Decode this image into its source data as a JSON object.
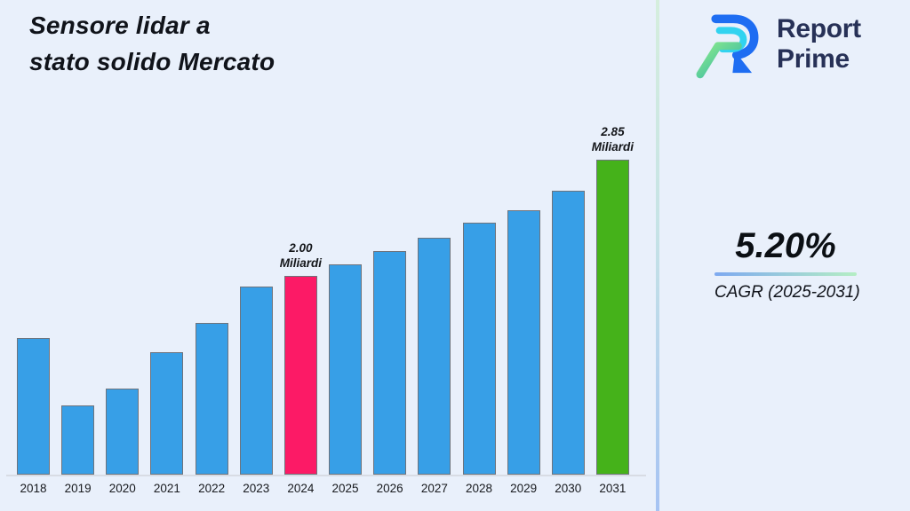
{
  "page": {
    "background": "#E9F0FB"
  },
  "title": {
    "line1": "Sensore lidar a",
    "line2": "stato solido Mercato"
  },
  "logo": {
    "brand_line1": "Report",
    "brand_line2": "Prime",
    "text_color": "#273157",
    "mark_colors": {
      "blue": "#1E6DF2",
      "cyan": "#31D3F0",
      "green_light": "#8BEA8B",
      "teal": "#2FB4A9"
    }
  },
  "cagr": {
    "value": "5.20%",
    "label": "CAGR (2025-2031)",
    "underline_gradient_left": "#7DA9F0",
    "underline_gradient_right": "#B5EEC4"
  },
  "divider": {
    "gradient_top": "#D5EEDD",
    "gradient_bottom": "#A6C3F3"
  },
  "chart_data": {
    "type": "bar",
    "title": "Sensore lidar a stato solido Mercato",
    "unit": "Miliardi",
    "categories": [
      "2018",
      "2019",
      "2020",
      "2021",
      "2022",
      "2023",
      "2024",
      "2025",
      "2026",
      "2027",
      "2028",
      "2029",
      "2030",
      "2031"
    ],
    "values": [
      1.54,
      1.05,
      1.17,
      1.44,
      1.65,
      1.92,
      2.0,
      2.08,
      2.18,
      2.28,
      2.39,
      2.48,
      2.62,
      2.85
    ],
    "bar_colors": [
      "#379FE7",
      "#379FE7",
      "#379FE7",
      "#379FE7",
      "#379FE7",
      "#379FE7",
      "#FC1A66",
      "#379FE7",
      "#379FE7",
      "#379FE7",
      "#379FE7",
      "#379FE7",
      "#379FE7",
      "#45B21A"
    ],
    "annotations": [
      {
        "category": "2024",
        "value_label": "2.00",
        "unit_label": "Miliardi"
      },
      {
        "category": "2031",
        "value_label": "2.85",
        "unit_label": "Miliardi"
      }
    ],
    "ylim": [
      0.54,
      2.85
    ],
    "xlabel": "",
    "ylabel": "",
    "grid": false,
    "legend": false
  }
}
